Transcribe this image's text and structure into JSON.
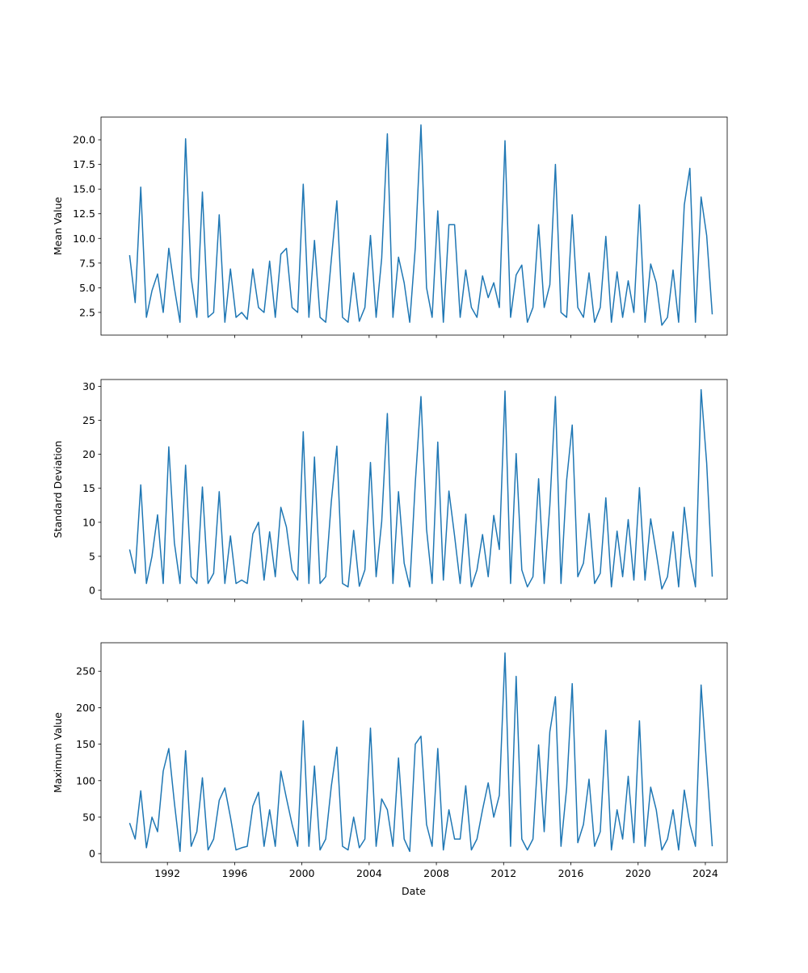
{
  "chart_data": [
    {
      "type": "line",
      "ylabel": "Mean Value",
      "xlabel": "",
      "ylim": [
        0.2,
        22.3
      ],
      "yticks": [
        2.5,
        5,
        7.5,
        10,
        12.5,
        15,
        17.5,
        20
      ],
      "ytick_labels": [
        "2.5",
        "5.0",
        "7.5",
        "10.0",
        "12.5",
        "15.0",
        "17.5",
        "20.0"
      ],
      "color": "#1f77b4",
      "values": [
        8.3,
        3.5,
        15.2,
        2.0,
        4.7,
        6.4,
        2.5,
        9.0,
        5.0,
        1.5,
        20.1,
        6.0,
        2.0,
        14.7,
        2.0,
        2.5,
        12.4,
        1.5,
        6.9,
        2.0,
        2.5,
        1.8,
        6.9,
        3.0,
        2.5,
        7.7,
        2.0,
        8.4,
        9.0,
        3.0,
        2.5,
        15.5,
        2.0,
        9.8,
        2.0,
        1.5,
        7.8,
        13.8,
        2.0,
        1.5,
        6.5,
        1.6,
        3.0,
        10.3,
        2.0,
        8.0,
        20.6,
        2.0,
        8.1,
        5.5,
        1.5,
        9.1,
        21.5,
        5.0,
        2.0,
        12.8,
        1.5,
        11.4,
        11.4,
        2.0,
        6.8,
        3.0,
        2.0,
        6.2,
        4.0,
        5.5,
        3.0,
        19.9,
        2.0,
        6.3,
        7.3,
        1.5,
        3.0,
        11.4,
        3.0,
        5.3,
        17.5,
        2.5,
        2.0,
        12.4,
        3.0,
        2.0,
        6.5,
        1.5,
        3.0,
        10.2,
        1.5,
        6.6,
        2.0,
        5.7,
        2.5,
        13.4,
        1.5,
        7.4,
        5.5,
        1.2,
        2.0,
        6.8,
        1.5,
        13.4,
        17.1,
        1.5,
        14.2,
        10.3,
        2.3
      ]
    },
    {
      "type": "line",
      "ylabel": "Standard Deviation",
      "xlabel": "",
      "ylim": [
        -1.3,
        31
      ],
      "yticks": [
        0,
        5,
        10,
        15,
        20,
        25,
        30
      ],
      "ytick_labels": [
        "0",
        "5",
        "10",
        "15",
        "20",
        "25",
        "30"
      ],
      "color": "#1f77b4",
      "values": [
        6.0,
        2.5,
        15.5,
        1.0,
        5.0,
        11.1,
        1.0,
        21.1,
        7.0,
        1.0,
        18.4,
        2.0,
        1.0,
        15.2,
        1.0,
        2.5,
        14.5,
        1.0,
        8.0,
        1.0,
        1.5,
        1.0,
        8.3,
        10.0,
        1.5,
        8.6,
        2.0,
        12.2,
        9.3,
        3.0,
        1.5,
        23.3,
        1.0,
        19.6,
        1.0,
        2.0,
        13.0,
        21.2,
        1.0,
        0.5,
        8.8,
        0.6,
        3.0,
        18.8,
        2.0,
        10.1,
        26.0,
        1.0,
        14.5,
        4.0,
        0.5,
        15.9,
        28.5,
        9.0,
        1.0,
        21.8,
        1.5,
        14.6,
        8.0,
        1.0,
        11.2,
        0.5,
        3.0,
        8.2,
        2.0,
        11.0,
        6.0,
        29.3,
        1.0,
        20.1,
        3.0,
        0.5,
        2.0,
        16.4,
        1.0,
        12.5,
        28.5,
        1.0,
        16.2,
        24.3,
        2.0,
        4.0,
        11.3,
        1.0,
        2.5,
        13.6,
        0.5,
        8.7,
        2.0,
        10.4,
        1.5,
        15.1,
        1.5,
        10.5,
        5.5,
        0.2,
        2.0,
        8.6,
        0.5,
        12.2,
        5.0,
        0.5,
        29.5,
        18.7,
        2.0
      ]
    },
    {
      "type": "line",
      "ylabel": "Maximum Value",
      "xlabel": "Date",
      "ylim": [
        -12,
        289
      ],
      "yticks": [
        0,
        50,
        100,
        150,
        200,
        250
      ],
      "ytick_labels": [
        "0",
        "50",
        "100",
        "150",
        "200",
        "250"
      ],
      "color": "#1f77b4",
      "values": [
        42,
        20,
        86,
        8,
        50,
        30,
        113,
        144,
        70,
        3,
        141,
        10,
        30,
        104,
        5,
        20,
        73,
        90,
        50,
        5,
        8,
        10,
        65,
        84,
        10,
        60,
        10,
        113,
        76,
        40,
        10,
        182,
        10,
        120,
        5,
        20,
        92,
        146,
        10,
        5,
        50,
        8,
        20,
        172,
        10,
        75,
        60,
        10,
        131,
        20,
        3,
        150,
        161,
        40,
        10,
        144,
        5,
        60,
        20,
        20,
        93,
        5,
        20,
        60,
        97,
        50,
        80,
        275,
        10,
        243,
        20,
        5,
        20,
        149,
        30,
        167,
        215,
        10,
        90,
        233,
        15,
        40,
        102,
        10,
        30,
        169,
        5,
        60,
        20,
        106,
        15,
        182,
        10,
        91,
        60,
        5,
        20,
        60,
        5,
        87,
        40,
        10,
        231,
        120,
        10
      ]
    }
  ],
  "x_axis": {
    "start_year": 1989.75,
    "step_years": 0.3333,
    "xlim": [
      1988.05,
      2025.3
    ],
    "ticks": [
      1992,
      1996,
      2000,
      2004,
      2008,
      2012,
      2016,
      2020,
      2024
    ],
    "tick_labels": [
      "1992",
      "1996",
      "2000",
      "2004",
      "2008",
      "2012",
      "2016",
      "2020",
      "2024"
    ],
    "label": "Date"
  }
}
